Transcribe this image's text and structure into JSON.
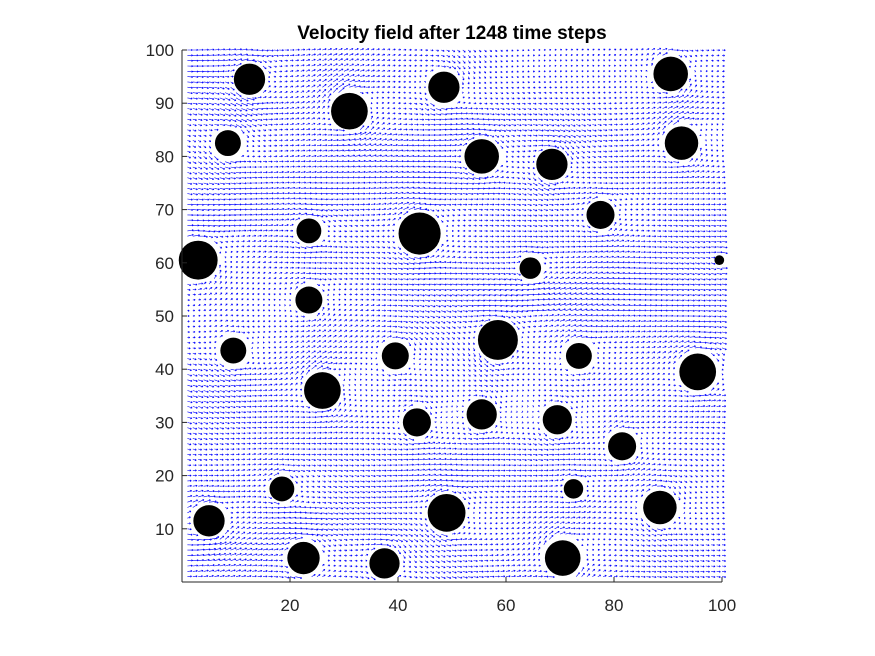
{
  "chart_data": {
    "type": "quiver",
    "title": "Velocity field after 1248 time steps",
    "xlabel": "",
    "ylabel": "",
    "xlim": [
      0,
      100
    ],
    "ylim": [
      0,
      100
    ],
    "x_ticks": [
      20,
      40,
      60,
      80,
      100
    ],
    "y_ticks": [
      10,
      20,
      30,
      40,
      50,
      60,
      70,
      80,
      90,
      100
    ],
    "grid": false,
    "legend": "none",
    "arrow_color": "#0000ff",
    "obstacle_color": "#000000",
    "grid_spacing": 1,
    "flow_direction": "left-to-right",
    "obstacles": [
      {
        "x": 12.5,
        "y": 94.5,
        "r": 2.9
      },
      {
        "x": 48.5,
        "y": 93.0,
        "r": 2.9
      },
      {
        "x": 90.5,
        "y": 95.5,
        "r": 3.2
      },
      {
        "x": 31.0,
        "y": 88.5,
        "r": 3.4
      },
      {
        "x": 8.5,
        "y": 82.5,
        "r": 2.4
      },
      {
        "x": 55.5,
        "y": 80.0,
        "r": 3.2
      },
      {
        "x": 68.5,
        "y": 78.5,
        "r": 2.9
      },
      {
        "x": 92.5,
        "y": 82.5,
        "r": 3.1
      },
      {
        "x": 77.5,
        "y": 69.0,
        "r": 2.6
      },
      {
        "x": 23.5,
        "y": 66.0,
        "r": 2.3
      },
      {
        "x": 44.0,
        "y": 65.5,
        "r": 3.9
      },
      {
        "x": 3.0,
        "y": 60.5,
        "r": 3.6
      },
      {
        "x": 64.5,
        "y": 59.0,
        "r": 2.0
      },
      {
        "x": 99.5,
        "y": 60.5,
        "r": 0.9
      },
      {
        "x": 23.5,
        "y": 53.0,
        "r": 2.5
      },
      {
        "x": 58.5,
        "y": 45.5,
        "r": 3.7
      },
      {
        "x": 9.5,
        "y": 43.5,
        "r": 2.4
      },
      {
        "x": 39.5,
        "y": 42.5,
        "r": 2.5
      },
      {
        "x": 73.5,
        "y": 42.5,
        "r": 2.4
      },
      {
        "x": 95.5,
        "y": 39.5,
        "r": 3.4
      },
      {
        "x": 26.0,
        "y": 36.0,
        "r": 3.4
      },
      {
        "x": 43.5,
        "y": 30.0,
        "r": 2.6
      },
      {
        "x": 55.5,
        "y": 31.5,
        "r": 2.8
      },
      {
        "x": 69.5,
        "y": 30.5,
        "r": 2.7
      },
      {
        "x": 81.5,
        "y": 25.5,
        "r": 2.6
      },
      {
        "x": 18.5,
        "y": 17.5,
        "r": 2.3
      },
      {
        "x": 72.5,
        "y": 17.5,
        "r": 1.8
      },
      {
        "x": 5.0,
        "y": 11.5,
        "r": 2.9
      },
      {
        "x": 49.0,
        "y": 13.0,
        "r": 3.5
      },
      {
        "x": 88.5,
        "y": 14.0,
        "r": 3.1
      },
      {
        "x": 22.5,
        "y": 4.5,
        "r": 3.0
      },
      {
        "x": 37.5,
        "y": 3.5,
        "r": 2.8
      },
      {
        "x": 70.5,
        "y": 4.5,
        "r": 3.3
      }
    ]
  }
}
